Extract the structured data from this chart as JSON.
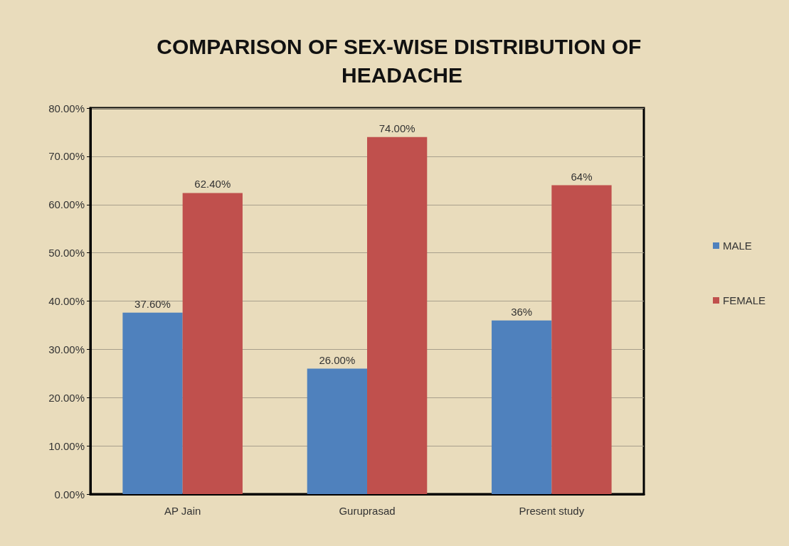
{
  "chart_data": {
    "type": "bar",
    "title": "COMPARISON OF SEX-WISE DISTRIBUTION OF HEADACHE",
    "categories": [
      "AP Jain",
      "Guruprasad",
      "Present study"
    ],
    "series": [
      {
        "name": "MALE",
        "color": "#4f81bd",
        "values": [
          37.6,
          26,
          36
        ],
        "value_labels": [
          "37.60%",
          "26.00%",
          "36%"
        ]
      },
      {
        "name": "FEMALE",
        "color": "#c0504d",
        "values": [
          62.4,
          74,
          64
        ],
        "value_labels": [
          "62.40%",
          "74.00%",
          "64%"
        ]
      }
    ],
    "ylim": [
      0,
      80
    ],
    "yticks": [
      {
        "value": 0,
        "label": "0.00%"
      },
      {
        "value": 10,
        "label": "10.00%"
      },
      {
        "value": 20,
        "label": "20.00%"
      },
      {
        "value": 30,
        "label": "30.00%"
      },
      {
        "value": 40,
        "label": "40.00%"
      },
      {
        "value": 50,
        "label": "50.00%"
      },
      {
        "value": 60,
        "label": "60.00%"
      },
      {
        "value": 70,
        "label": "70.00%"
      },
      {
        "value": 80,
        "label": "80.00%"
      }
    ],
    "grid": "y",
    "legend": "right"
  }
}
